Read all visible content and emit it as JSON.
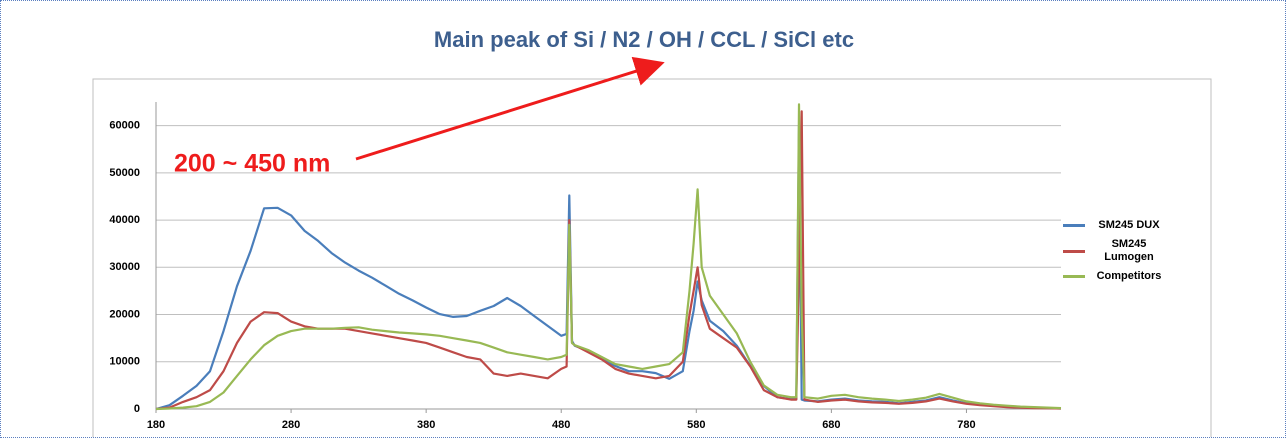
{
  "chart_data": {
    "type": "line",
    "title": "Main peak of Si / N2 / OH / CCL / SiCl etc",
    "annotation": "200 ~ 450 nm",
    "x": [
      180,
      190,
      200,
      210,
      220,
      230,
      240,
      250,
      260,
      270,
      280,
      290,
      300,
      310,
      320,
      330,
      340,
      350,
      360,
      370,
      380,
      390,
      400,
      410,
      420,
      430,
      440,
      450,
      460,
      470,
      480,
      484,
      486,
      488,
      490,
      500,
      510,
      520,
      530,
      540,
      550,
      560,
      570,
      575,
      578,
      581,
      584,
      590,
      600,
      610,
      620,
      630,
      640,
      650,
      654,
      656,
      658,
      660,
      670,
      680,
      690,
      700,
      710,
      720,
      730,
      740,
      750,
      760,
      770,
      780,
      790,
      800,
      810,
      820,
      830,
      840,
      850
    ],
    "series": [
      {
        "name": "SM245 DUX",
        "color": "#4a7ebb",
        "values": [
          0,
          800,
          2800,
          4900,
          8000,
          16500,
          26000,
          33500,
          42500,
          42600,
          41000,
          37700,
          35600,
          33000,
          31000,
          29300,
          27800,
          26100,
          24400,
          23000,
          21500,
          20100,
          19500,
          19700,
          20800,
          21800,
          23500,
          21800,
          19700,
          17600,
          15500,
          15900,
          45200,
          14400,
          13400,
          12300,
          10600,
          9100,
          8000,
          8000,
          7600,
          6400,
          8000,
          16500,
          20800,
          27000,
          23000,
          18700,
          16500,
          13400,
          9100,
          4900,
          2500,
          2100,
          2100,
          60000,
          2000,
          1800,
          1600,
          2000,
          2200,
          1800,
          1600,
          1500,
          1200,
          1500,
          1800,
          2500,
          1800,
          1200,
          900,
          700,
          500,
          400,
          300,
          200,
          100
        ]
      },
      {
        "name": "SM245 Lumogen",
        "color": "#be4b48",
        "values": [
          0,
          300,
          1500,
          2500,
          4000,
          8000,
          14000,
          18500,
          20500,
          20300,
          18500,
          17500,
          17000,
          17000,
          17000,
          16500,
          16000,
          15500,
          15000,
          14500,
          14000,
          13000,
          12000,
          11000,
          10500,
          7500,
          7000,
          7500,
          7000,
          6500,
          8500,
          9000,
          40000,
          14000,
          13500,
          12000,
          10500,
          8500,
          7500,
          7000,
          6500,
          7000,
          10000,
          20000,
          25000,
          30000,
          22000,
          17000,
          15000,
          13000,
          9000,
          4000,
          2500,
          2000,
          2000,
          30000,
          63000,
          2000,
          1500,
          1800,
          2000,
          1600,
          1400,
          1300,
          1100,
          1300,
          1600,
          2200,
          1600,
          1100,
          800,
          600,
          400,
          300,
          200,
          150,
          100
        ]
      },
      {
        "name": "Competitors",
        "color": "#98b954",
        "values": [
          0,
          100,
          300,
          600,
          1500,
          3500,
          7000,
          10500,
          13500,
          15500,
          16500,
          17000,
          17000,
          17000,
          17200,
          17300,
          16800,
          16500,
          16200,
          16000,
          15800,
          15500,
          15000,
          14500,
          14000,
          13000,
          12000,
          11500,
          11000,
          10500,
          11000,
          11500,
          39000,
          14000,
          13500,
          12500,
          11000,
          9500,
          9000,
          8500,
          9000,
          9500,
          12000,
          25000,
          35000,
          46500,
          30000,
          24000,
          20000,
          16000,
          10000,
          5000,
          3000,
          2500,
          2500,
          64500,
          20000,
          2500,
          2200,
          2800,
          3000,
          2500,
          2200,
          2000,
          1700,
          2000,
          2400,
          3200,
          2400,
          1600,
          1200,
          900,
          700,
          500,
          400,
          300,
          200
        ]
      }
    ],
    "xlim": [
      180,
      850
    ],
    "xticks": [
      180,
      280,
      380,
      480,
      580,
      680,
      780
    ],
    "ylim": [
      0,
      65000
    ],
    "yticks": [
      0,
      10000,
      20000,
      30000,
      40000,
      50000,
      60000
    ],
    "grid": true,
    "legend": "right"
  }
}
